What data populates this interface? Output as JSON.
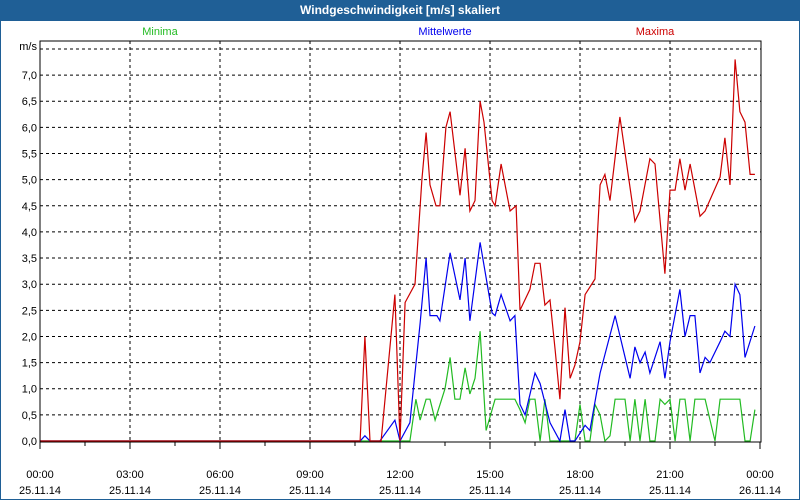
{
  "window": {
    "title": "Windgeschwindigkeit [m/s] skaliert"
  },
  "chart_data": {
    "type": "line",
    "title": "Windgeschwindigkeit [m/s] skaliert",
    "ylabel": "m/s",
    "xlabel": "",
    "ylim": [
      0,
      7.5
    ],
    "xlim_hours": [
      0,
      24
    ],
    "grid": true,
    "y_ticks": [
      "0,0",
      "0,5",
      "1,0",
      "1,5",
      "2,0",
      "2,5",
      "3,0",
      "3,5",
      "4,0",
      "4,5",
      "5,0",
      "5,5",
      "6,0",
      "6,5",
      "7,0"
    ],
    "x_ticks": [
      {
        "time": "00:00",
        "date": "25.11.14"
      },
      {
        "time": "03:00",
        "date": "25.11.14"
      },
      {
        "time": "06:00",
        "date": "25.11.14"
      },
      {
        "time": "09:00",
        "date": "25.11.14"
      },
      {
        "time": "12:00",
        "date": "25.11.14"
      },
      {
        "time": "15:00",
        "date": "25.11.14"
      },
      {
        "time": "18:00",
        "date": "25.11.14"
      },
      {
        "time": "21:00",
        "date": "25.11.14"
      },
      {
        "time": "00:00",
        "date": "26.11.14"
      }
    ],
    "legend_placement": "top",
    "series": [
      {
        "name": "Minima",
        "color": "#22bb22",
        "points": [
          [
            0,
            0
          ],
          [
            12.33,
            0
          ],
          [
            12.53,
            0.8
          ],
          [
            12.67,
            0.4
          ],
          [
            12.87,
            0.8
          ],
          [
            13.0,
            0.8
          ],
          [
            13.17,
            0.4
          ],
          [
            13.5,
            1.0
          ],
          [
            13.67,
            1.6
          ],
          [
            13.83,
            0.8
          ],
          [
            14.0,
            0.8
          ],
          [
            14.17,
            1.4
          ],
          [
            14.33,
            0.9
          ],
          [
            14.5,
            1.2
          ],
          [
            14.67,
            2.1
          ],
          [
            14.87,
            0.2
          ],
          [
            15.17,
            0.8
          ],
          [
            15.83,
            0.8
          ],
          [
            16.0,
            0.6
          ],
          [
            16.17,
            0.35
          ],
          [
            16.33,
            0.8
          ],
          [
            16.5,
            0.8
          ],
          [
            16.67,
            0
          ],
          [
            16.83,
            0.8
          ],
          [
            17.0,
            0
          ],
          [
            17.83,
            0
          ],
          [
            18.0,
            0.7
          ],
          [
            18.17,
            0
          ],
          [
            18.33,
            0
          ],
          [
            18.5,
            0.7
          ],
          [
            18.67,
            0.5
          ],
          [
            18.83,
            0
          ],
          [
            19.0,
            0.1
          ],
          [
            19.17,
            0.8
          ],
          [
            19.5,
            0.8
          ],
          [
            19.67,
            0
          ],
          [
            19.83,
            0.8
          ],
          [
            20.0,
            0
          ],
          [
            20.17,
            0.8
          ],
          [
            20.33,
            0
          ],
          [
            20.5,
            0
          ],
          [
            20.67,
            0.8
          ],
          [
            20.83,
            0.7
          ],
          [
            21.0,
            0.8
          ],
          [
            21.17,
            0
          ],
          [
            21.33,
            0.8
          ],
          [
            21.5,
            0.8
          ],
          [
            21.67,
            0
          ],
          [
            21.83,
            0.8
          ],
          [
            22.17,
            0.8
          ],
          [
            22.5,
            0
          ],
          [
            22.67,
            0.8
          ],
          [
            23.33,
            0.8
          ],
          [
            23.5,
            0
          ],
          [
            23.67,
            0
          ],
          [
            23.83,
            0.6
          ]
        ]
      },
      {
        "name": "Mittelwerte",
        "color": "#0000ee",
        "points": [
          [
            0,
            0
          ],
          [
            10.67,
            0
          ],
          [
            10.83,
            0.1
          ],
          [
            11.0,
            0
          ],
          [
            11.33,
            0
          ],
          [
            11.83,
            0.4
          ],
          [
            12.0,
            0
          ],
          [
            12.33,
            0.35
          ],
          [
            12.67,
            2.25
          ],
          [
            12.87,
            3.5
          ],
          [
            13.0,
            2.4
          ],
          [
            13.23,
            2.4
          ],
          [
            13.33,
            2.3
          ],
          [
            13.67,
            3.6
          ],
          [
            14.0,
            2.7
          ],
          [
            14.17,
            3.5
          ],
          [
            14.33,
            2.3
          ],
          [
            14.67,
            3.8
          ],
          [
            15.07,
            2.45
          ],
          [
            15.17,
            2.4
          ],
          [
            15.37,
            2.8
          ],
          [
            15.67,
            2.3
          ],
          [
            15.83,
            2.4
          ],
          [
            16.0,
            0.7
          ],
          [
            16.17,
            0.5
          ],
          [
            16.5,
            1.3
          ],
          [
            16.67,
            1.1
          ],
          [
            17.0,
            0.35
          ],
          [
            17.33,
            0
          ],
          [
            17.5,
            0.6
          ],
          [
            17.67,
            0
          ],
          [
            17.83,
            0
          ],
          [
            18.17,
            0.3
          ],
          [
            18.33,
            0.2
          ],
          [
            18.67,
            1.3
          ],
          [
            19.17,
            2.4
          ],
          [
            19.67,
            1.2
          ],
          [
            19.83,
            1.8
          ],
          [
            20.0,
            1.5
          ],
          [
            20.17,
            1.7
          ],
          [
            20.33,
            1.3
          ],
          [
            20.67,
            1.9
          ],
          [
            20.83,
            1.2
          ],
          [
            21.0,
            1.9
          ],
          [
            21.33,
            2.9
          ],
          [
            21.5,
            2.0
          ],
          [
            21.67,
            2.4
          ],
          [
            21.83,
            2.4
          ],
          [
            22.0,
            1.3
          ],
          [
            22.17,
            1.6
          ],
          [
            22.33,
            1.5
          ],
          [
            22.67,
            1.9
          ],
          [
            22.83,
            2.1
          ],
          [
            23.0,
            2.0
          ],
          [
            23.17,
            3.0
          ],
          [
            23.33,
            2.8
          ],
          [
            23.5,
            1.6
          ],
          [
            23.83,
            2.2
          ]
        ]
      },
      {
        "name": "Maxima",
        "color": "#cc0000",
        "points": [
          [
            0,
            0
          ],
          [
            10.67,
            0
          ],
          [
            10.83,
            2.0
          ],
          [
            11.0,
            0
          ],
          [
            11.37,
            0
          ],
          [
            11.83,
            2.8
          ],
          [
            12.0,
            0
          ],
          [
            12.17,
            2.65
          ],
          [
            12.5,
            3.0
          ],
          [
            12.73,
            5.0
          ],
          [
            12.87,
            5.9
          ],
          [
            13.0,
            4.9
          ],
          [
            13.2,
            4.5
          ],
          [
            13.33,
            4.5
          ],
          [
            13.53,
            6.0
          ],
          [
            13.67,
            6.3
          ],
          [
            14.0,
            4.7
          ],
          [
            14.17,
            5.6
          ],
          [
            14.33,
            4.4
          ],
          [
            14.5,
            4.6
          ],
          [
            14.67,
            6.5
          ],
          [
            14.8,
            6.1
          ],
          [
            15.07,
            4.6
          ],
          [
            15.17,
            4.5
          ],
          [
            15.37,
            5.3
          ],
          [
            15.67,
            4.4
          ],
          [
            15.87,
            4.5
          ],
          [
            16.0,
            2.5
          ],
          [
            16.33,
            2.9
          ],
          [
            16.5,
            3.4
          ],
          [
            16.67,
            3.4
          ],
          [
            16.83,
            2.6
          ],
          [
            17.0,
            2.7
          ],
          [
            17.17,
            1.75
          ],
          [
            17.33,
            0.8
          ],
          [
            17.5,
            2.55
          ],
          [
            17.67,
            1.2
          ],
          [
            17.83,
            1.45
          ],
          [
            18.0,
            1.9
          ],
          [
            18.17,
            2.8
          ],
          [
            18.5,
            3.1
          ],
          [
            18.67,
            4.9
          ],
          [
            18.83,
            5.1
          ],
          [
            19.0,
            4.6
          ],
          [
            19.33,
            6.2
          ],
          [
            19.83,
            4.2
          ],
          [
            20.0,
            4.4
          ],
          [
            20.33,
            5.4
          ],
          [
            20.5,
            5.3
          ],
          [
            20.83,
            3.2
          ],
          [
            21.0,
            4.8
          ],
          [
            21.17,
            4.8
          ],
          [
            21.33,
            5.4
          ],
          [
            21.5,
            4.8
          ],
          [
            21.67,
            5.3
          ],
          [
            22.0,
            4.3
          ],
          [
            22.17,
            4.4
          ],
          [
            22.67,
            5.05
          ],
          [
            22.83,
            5.8
          ],
          [
            23.0,
            4.9
          ],
          [
            23.17,
            7.3
          ],
          [
            23.33,
            6.3
          ],
          [
            23.5,
            6.1
          ],
          [
            23.67,
            5.1
          ],
          [
            23.83,
            5.1
          ]
        ]
      }
    ]
  }
}
